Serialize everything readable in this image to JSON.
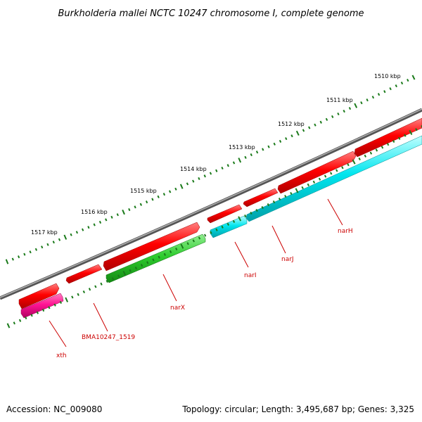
{
  "title": "Burkholderia mallei NCTC 10247 chromosome I, complete genome",
  "accession": "Accession: NC_009080",
  "summary": "Topology: circular; Length: 3,495,687 bp; Genes: 3,325",
  "scale_labels": [
    {
      "text": "1517 kbp",
      "kbp": 1517
    },
    {
      "text": "1516 kbp",
      "kbp": 1516
    },
    {
      "text": "1515 kbp",
      "kbp": 1515
    },
    {
      "text": "1514 kbp",
      "kbp": 1514
    },
    {
      "text": "1513 kbp",
      "kbp": 1513
    },
    {
      "text": "1512 kbp",
      "kbp": 1512
    },
    {
      "text": "1511 kbp",
      "kbp": 1511
    },
    {
      "text": "1510 kbp",
      "kbp": 1510
    }
  ],
  "gene_labels": [
    "xth",
    "BMA10247_1519",
    "narX",
    "narI",
    "narJ",
    "narH"
  ],
  "colors": {
    "backbone": "#808080",
    "cds_forward": "#ff0000",
    "cds_reverse_magenta": "#ff1493",
    "cds_reverse_green": "#2ecc2e",
    "cds_reverse_cyan": "#00e5ee",
    "tick": "#1a7a1a",
    "gene_label": "#cc0000"
  }
}
